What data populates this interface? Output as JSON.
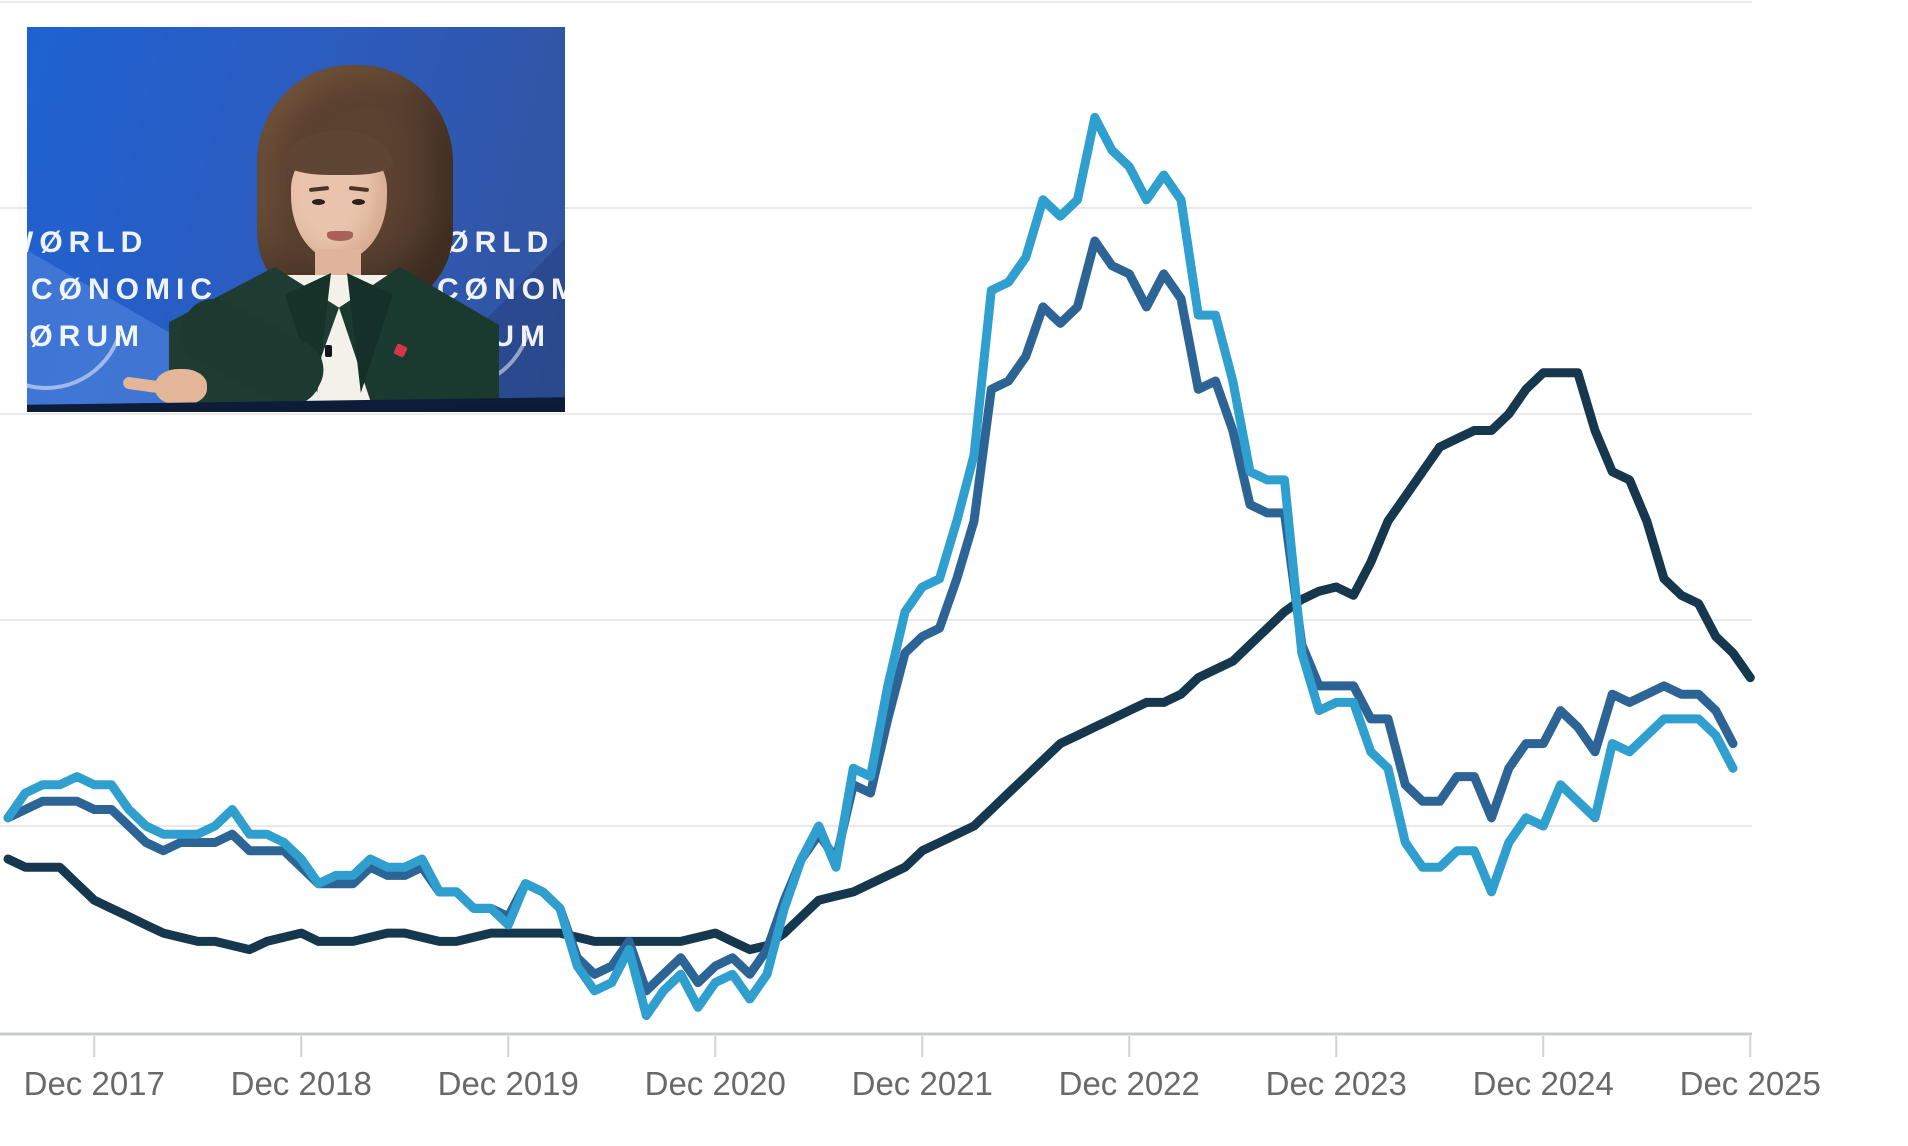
{
  "page": {
    "background": "#ffffff"
  },
  "photo_inset": {
    "wef_lines": [
      "WØRLD",
      "ECØNOMIC",
      "FØRUM"
    ],
    "colors": {
      "backdrop_blue": "#1e62d2",
      "backdrop_deep_blue": "#33549e",
      "mountain_blue": "#4a7ed8",
      "desk_navy": "#0d1d3a",
      "blazer_green": "#1e3c31",
      "shirt_white": "#f4f1ea",
      "hair_brown": "#5a4130",
      "skin": "#e9c3ab",
      "pin_red": "#d4354a",
      "logo_text_white": "#ffffff"
    }
  },
  "chart_data": {
    "type": "line",
    "title": "",
    "xlabel": "",
    "ylabel": "",
    "x_frequency": "monthly",
    "x_start_month": "Jul 2017",
    "x_tick_labels": [
      "Dec 2017",
      "Dec 2018",
      "Dec 2019",
      "Dec 2020",
      "Dec 2021",
      "Dec 2022",
      "Dec 2023",
      "Dec 2024",
      "Dec 2025"
    ],
    "y_axis": {
      "labels_visible": false,
      "estimated_gridline_values": [
        0,
        2.5,
        5,
        7.5,
        10,
        12.5
      ],
      "note": "No y-axis labels or legend are visible in the screenshot; values estimated from unlabeled gridlines (baseline = x-axis line)."
    },
    "grid": true,
    "legend_position": "none",
    "series": [
      {
        "name": "dark-navy",
        "color": "#16384e",
        "values": [
          2.1,
          2.0,
          2.0,
          2.0,
          1.8,
          1.6,
          1.5,
          1.4,
          1.3,
          1.2,
          1.15,
          1.1,
          1.1,
          1.05,
          1.0,
          1.1,
          1.15,
          1.2,
          1.1,
          1.1,
          1.1,
          1.15,
          1.2,
          1.2,
          1.15,
          1.1,
          1.1,
          1.15,
          1.2,
          1.2,
          1.2,
          1.2,
          1.2,
          1.15,
          1.1,
          1.1,
          1.1,
          1.1,
          1.1,
          1.1,
          1.15,
          1.2,
          1.1,
          1.0,
          1.05,
          1.2,
          1.4,
          1.6,
          1.65,
          1.7,
          1.8,
          1.9,
          2.0,
          2.2,
          2.3,
          2.4,
          2.5,
          2.7,
          2.9,
          3.1,
          3.3,
          3.5,
          3.6,
          3.7,
          3.8,
          3.9,
          4.0,
          4.0,
          4.1,
          4.3,
          4.4,
          4.5,
          4.7,
          4.9,
          5.1,
          5.25,
          5.35,
          5.4,
          5.3,
          5.7,
          6.2,
          6.5,
          6.8,
          7.1,
          7.2,
          7.3,
          7.3,
          7.5,
          7.8,
          8.0,
          8.0,
          8.0,
          7.3,
          6.8,
          6.7,
          6.2,
          5.5,
          5.3,
          5.2,
          4.8,
          4.6,
          4.3
        ]
      },
      {
        "name": "steel-blue",
        "color": "#2d6496",
        "values": [
          2.6,
          2.7,
          2.8,
          2.8,
          2.8,
          2.7,
          2.7,
          2.5,
          2.3,
          2.2,
          2.3,
          2.3,
          2.3,
          2.4,
          2.2,
          2.2,
          2.2,
          2.0,
          1.8,
          1.8,
          1.8,
          2.0,
          1.9,
          1.9,
          2.0,
          1.7,
          1.7,
          1.5,
          1.5,
          1.4,
          1.8,
          1.7,
          1.5,
          0.9,
          0.7,
          0.8,
          1.1,
          0.5,
          0.7,
          0.9,
          0.6,
          0.8,
          0.9,
          0.7,
          1.0,
          1.6,
          2.1,
          2.4,
          2.1,
          3.0,
          2.9,
          3.8,
          4.6,
          4.8,
          4.9,
          5.5,
          6.2,
          7.8,
          7.9,
          8.2,
          8.8,
          8.6,
          8.8,
          9.6,
          9.3,
          9.2,
          8.8,
          9.2,
          8.9,
          7.8,
          7.9,
          7.3,
          6.4,
          6.3,
          6.3,
          4.7,
          4.2,
          4.2,
          4.2,
          3.8,
          3.8,
          3.0,
          2.8,
          2.8,
          3.1,
          3.1,
          2.6,
          3.2,
          3.5,
          3.5,
          3.9,
          3.7,
          3.4,
          4.1,
          4.0,
          4.1,
          4.2,
          4.1,
          4.1,
          3.9,
          3.5
        ]
      },
      {
        "name": "light-blue",
        "color": "#2e9fce",
        "values": [
          2.6,
          2.9,
          3.0,
          3.0,
          3.1,
          3.0,
          3.0,
          2.7,
          2.5,
          2.4,
          2.4,
          2.4,
          2.5,
          2.7,
          2.4,
          2.4,
          2.3,
          2.1,
          1.8,
          1.9,
          1.9,
          2.1,
          2.0,
          2.0,
          2.1,
          1.7,
          1.7,
          1.5,
          1.5,
          1.3,
          1.8,
          1.7,
          1.5,
          0.8,
          0.5,
          0.6,
          1.0,
          0.2,
          0.5,
          0.7,
          0.3,
          0.6,
          0.7,
          0.4,
          0.7,
          1.5,
          2.1,
          2.5,
          2.0,
          3.2,
          3.1,
          4.2,
          5.1,
          5.4,
          5.5,
          6.2,
          7.0,
          9.0,
          9.1,
          9.4,
          10.1,
          9.9,
          10.1,
          11.1,
          10.7,
          10.5,
          10.1,
          10.4,
          10.1,
          8.7,
          8.7,
          7.9,
          6.8,
          6.7,
          6.7,
          4.6,
          3.9,
          4.0,
          4.0,
          3.4,
          3.2,
          2.3,
          2.0,
          2.0,
          2.2,
          2.2,
          1.7,
          2.3,
          2.6,
          2.5,
          3.0,
          2.8,
          2.6,
          3.5,
          3.4,
          3.6,
          3.8,
          3.8,
          3.8,
          3.6,
          3.2
        ]
      }
    ],
    "style": {
      "gridline_color": "#e9e9e9",
      "axis_line_color": "#c9cdd0",
      "tick_color": "#cfd3d6",
      "tick_label_color": "#696969"
    }
  }
}
